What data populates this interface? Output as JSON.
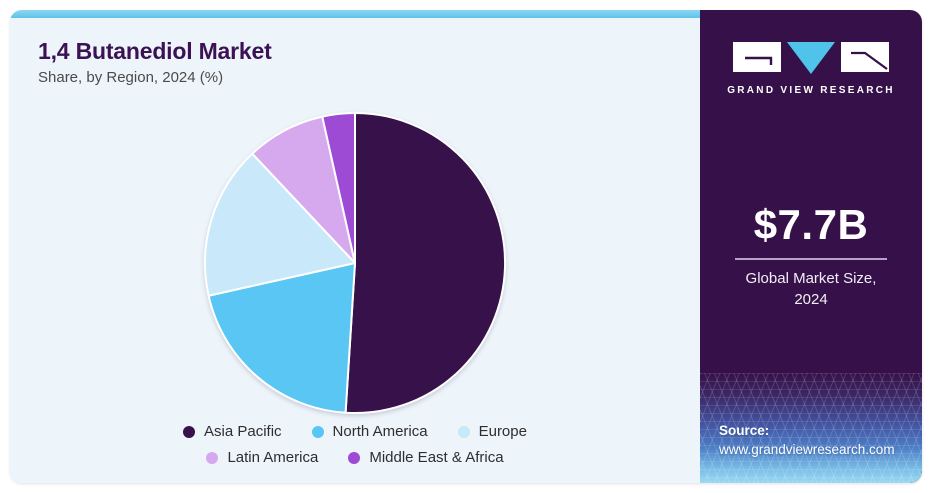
{
  "card": {
    "accent_bar_color": "#5ec2ea",
    "panel_bg": "#edf4fa",
    "title_color": "#3b1253"
  },
  "chart_data": {
    "type": "pie",
    "title": "1,4 Butanediol Market",
    "subtitle": "Share, by Region, 2024 (%)",
    "unit": "%",
    "start_angle_deg": 0,
    "direction": "clockwise",
    "legend_position": "bottom",
    "categories": [
      "Asia Pacific",
      "North America",
      "Europe",
      "Latin America",
      "Middle East & Africa"
    ],
    "values": [
      51,
      20.5,
      16.5,
      8.5,
      3.5
    ],
    "colors": [
      "#371149",
      "#5ac6f3",
      "#c9e9fa",
      "#d6a9ee",
      "#9d4bd5"
    ],
    "slice_border_color": "#ffffff"
  },
  "sidebar": {
    "bg": "#361149",
    "logo": {
      "text": "GRAND VIEW RESEARCH",
      "triangle_color": "#4fc3ea",
      "mark_box_color": "#ffffff"
    },
    "stat": {
      "value": "$7.7B",
      "label_line1": "Global Market Size,",
      "label_line2": "2024"
    },
    "source": {
      "label": "Source:",
      "url": "www.grandviewresearch.com"
    }
  }
}
